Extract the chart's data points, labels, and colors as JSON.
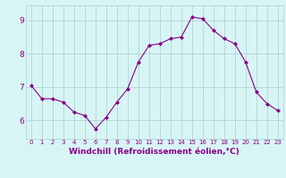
{
  "x": [
    0,
    1,
    2,
    3,
    4,
    5,
    6,
    7,
    8,
    9,
    10,
    11,
    12,
    13,
    14,
    15,
    16,
    17,
    18,
    19,
    20,
    21,
    22,
    23
  ],
  "y": [
    7.05,
    6.65,
    6.65,
    6.55,
    6.25,
    6.15,
    5.75,
    6.1,
    6.55,
    6.95,
    7.75,
    8.25,
    8.3,
    8.45,
    8.5,
    9.1,
    9.05,
    8.7,
    8.45,
    8.3,
    7.75,
    6.85,
    6.5,
    6.3
  ],
  "line_color": "#880088",
  "marker": "D",
  "marker_size": 2,
  "bg_color": "#d8f5f5",
  "grid_color": "#aacfcf",
  "axis_color": "#880088",
  "xlabel": "Windchill (Refroidissement éolien,°C)",
  "ylabel_ticks": [
    6,
    7,
    8,
    9
  ],
  "xtick_labels": [
    "0",
    "1",
    "2",
    "3",
    "4",
    "5",
    "6",
    "7",
    "8",
    "9",
    "10",
    "11",
    "12",
    "13",
    "14",
    "15",
    "16",
    "17",
    "18",
    "19",
    "20",
    "21",
    "22",
    "23"
  ],
  "xlim": [
    -0.5,
    23.5
  ],
  "ylim": [
    5.45,
    9.45
  ],
  "figsize": [
    3.2,
    2.0
  ],
  "dpi": 100
}
